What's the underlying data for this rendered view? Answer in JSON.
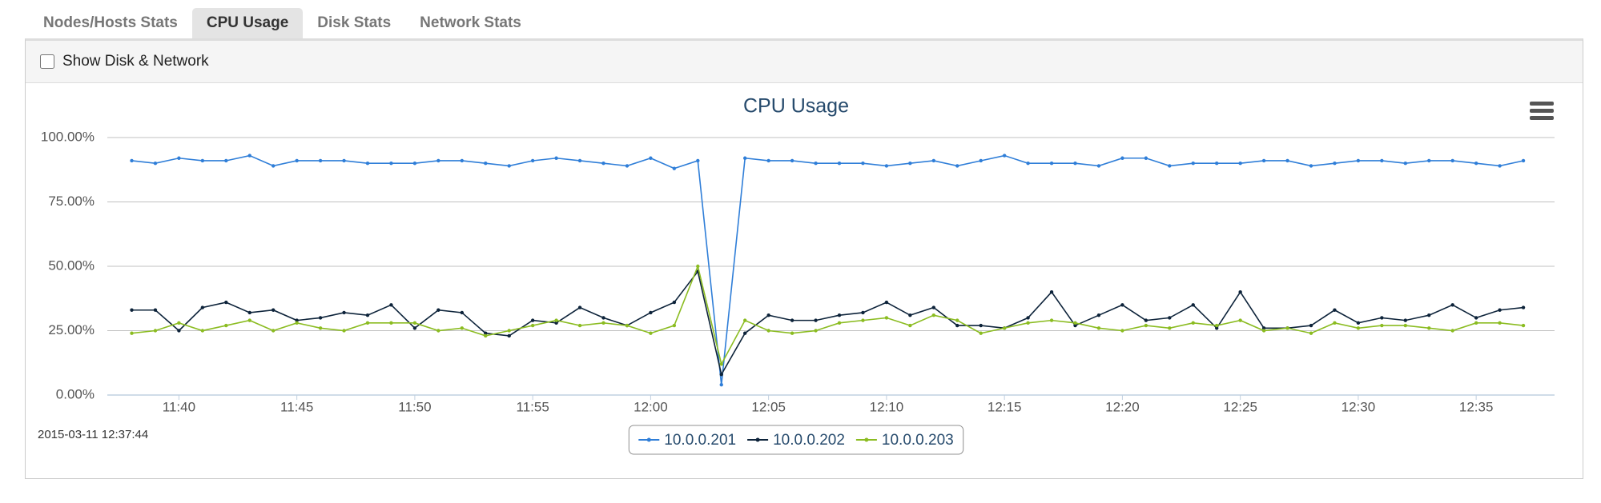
{
  "tabs": [
    "Nodes/Hosts Stats",
    "CPU Usage",
    "Disk Stats",
    "Network Stats"
  ],
  "active_tab": 1,
  "checkbox_label": "Show Disk & Network",
  "timestamp": "2015-03-11 12:37:44",
  "chart_data": {
    "type": "line",
    "title": "CPU Usage",
    "categories": [
      null,
      null,
      "11:40",
      null,
      null,
      null,
      null,
      "11:45",
      null,
      null,
      null,
      null,
      "11:50",
      null,
      null,
      null,
      null,
      "11:55",
      null,
      null,
      null,
      null,
      "12:00",
      null,
      null,
      null,
      null,
      "12:05",
      null,
      null,
      null,
      null,
      "12:10",
      null,
      null,
      null,
      null,
      "12:15",
      null,
      null,
      null,
      null,
      "12:20",
      null,
      null,
      null,
      null,
      "12:25",
      null,
      null,
      null,
      null,
      "12:30",
      null,
      null,
      null,
      null,
      "12:35",
      null,
      null
    ],
    "ylim": [
      0,
      100
    ],
    "yticks": [
      {
        "value": 0,
        "label": "0.00%"
      },
      {
        "value": 25,
        "label": "25.00%"
      },
      {
        "value": 50,
        "label": "50.00%"
      },
      {
        "value": 75,
        "label": "75.00%"
      },
      {
        "value": 100,
        "label": "100.00%"
      }
    ],
    "grid": true,
    "legend": "bottom",
    "series": [
      {
        "name": "10.0.0.201",
        "color": "#2f7ed8",
        "values": [
          91,
          90,
          92,
          91,
          91,
          93,
          89,
          91,
          91,
          91,
          90,
          90,
          90,
          91,
          91,
          90,
          89,
          91,
          92,
          91,
          90,
          89,
          92,
          88,
          91,
          4,
          92,
          91,
          91,
          90,
          90,
          90,
          89,
          90,
          91,
          89,
          91,
          93,
          90,
          90,
          90,
          89,
          92,
          92,
          89,
          90,
          90,
          90,
          91,
          91,
          89,
          90,
          91,
          91,
          90,
          91,
          91,
          90,
          89,
          91
        ]
      },
      {
        "name": "10.0.0.202",
        "color": "#0d233a",
        "values": [
          33,
          33,
          25,
          34,
          36,
          32,
          33,
          29,
          30,
          32,
          31,
          35,
          26,
          33,
          32,
          24,
          23,
          29,
          28,
          34,
          30,
          27,
          32,
          36,
          48,
          8,
          24,
          31,
          29,
          29,
          31,
          32,
          36,
          31,
          34,
          27,
          27,
          26,
          30,
          40,
          27,
          31,
          35,
          29,
          30,
          35,
          26,
          40,
          26,
          26,
          27,
          33,
          28,
          30,
          29,
          31,
          35,
          30,
          33,
          34
        ]
      },
      {
        "name": "10.0.0.203",
        "color": "#8bbc21",
        "values": [
          24,
          25,
          28,
          25,
          27,
          29,
          25,
          28,
          26,
          25,
          28,
          28,
          28,
          25,
          26,
          23,
          25,
          27,
          29,
          27,
          28,
          27,
          24,
          27,
          50,
          12,
          29,
          25,
          24,
          25,
          28,
          29,
          30,
          27,
          31,
          29,
          24,
          26,
          28,
          29,
          28,
          26,
          25,
          27,
          26,
          28,
          27,
          29,
          25,
          26,
          24,
          28,
          26,
          27,
          27,
          26,
          25,
          28,
          28,
          27
        ]
      }
    ]
  }
}
